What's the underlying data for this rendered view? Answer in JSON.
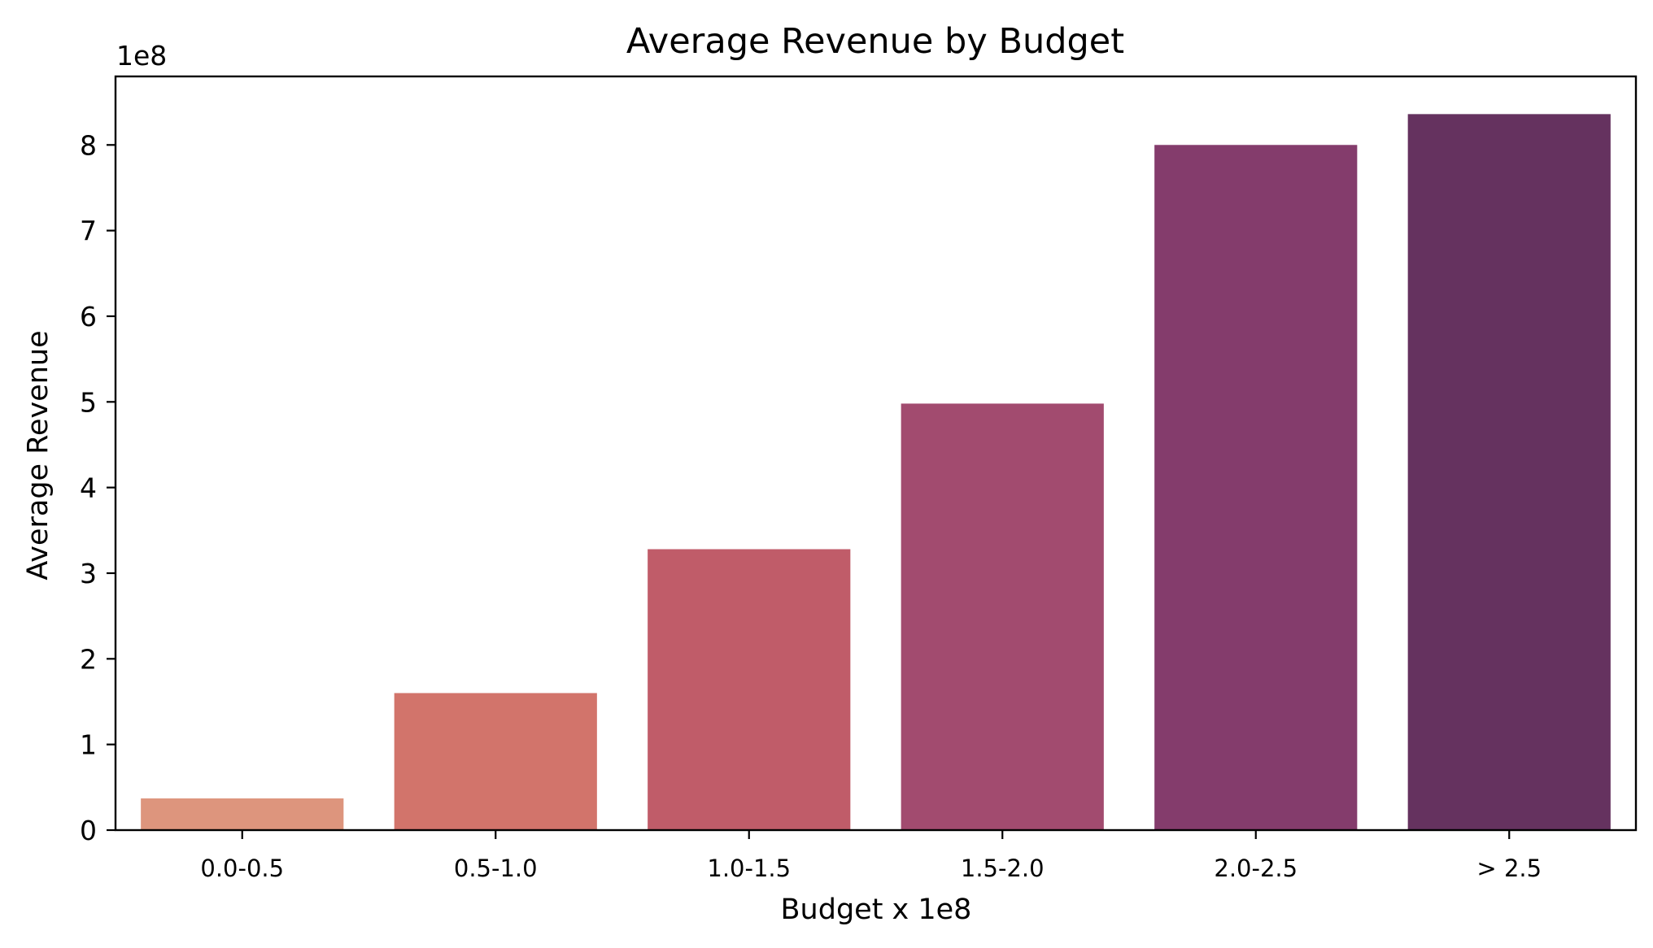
{
  "chart_data": {
    "type": "bar",
    "title": "Average Revenue by Budget",
    "xlabel": "Budget x 1e8",
    "ylabel": "Average Revenue",
    "y_offset_label": "1e8",
    "categories": [
      "0.0-0.5",
      "0.5-1.0",
      "1.0-1.5",
      "1.5-2.0",
      "2.0-2.5",
      "> 2.5"
    ],
    "values": [
      0.37,
      1.6,
      3.28,
      4.98,
      8.0,
      8.36
    ],
    "value_scale": "1e8",
    "ylim": [
      0,
      8.8
    ],
    "yticks": [
      0,
      1,
      2,
      3,
      4,
      5,
      6,
      7,
      8
    ],
    "ytick_labels": [
      "0",
      "1",
      "2",
      "3",
      "4",
      "5",
      "6",
      "7",
      "8"
    ],
    "colors": [
      "#dd957d",
      "#d2746b",
      "#c05c69",
      "#a24b6f",
      "#843c6c",
      "#65325f"
    ],
    "grid": false,
    "legend": "none"
  }
}
